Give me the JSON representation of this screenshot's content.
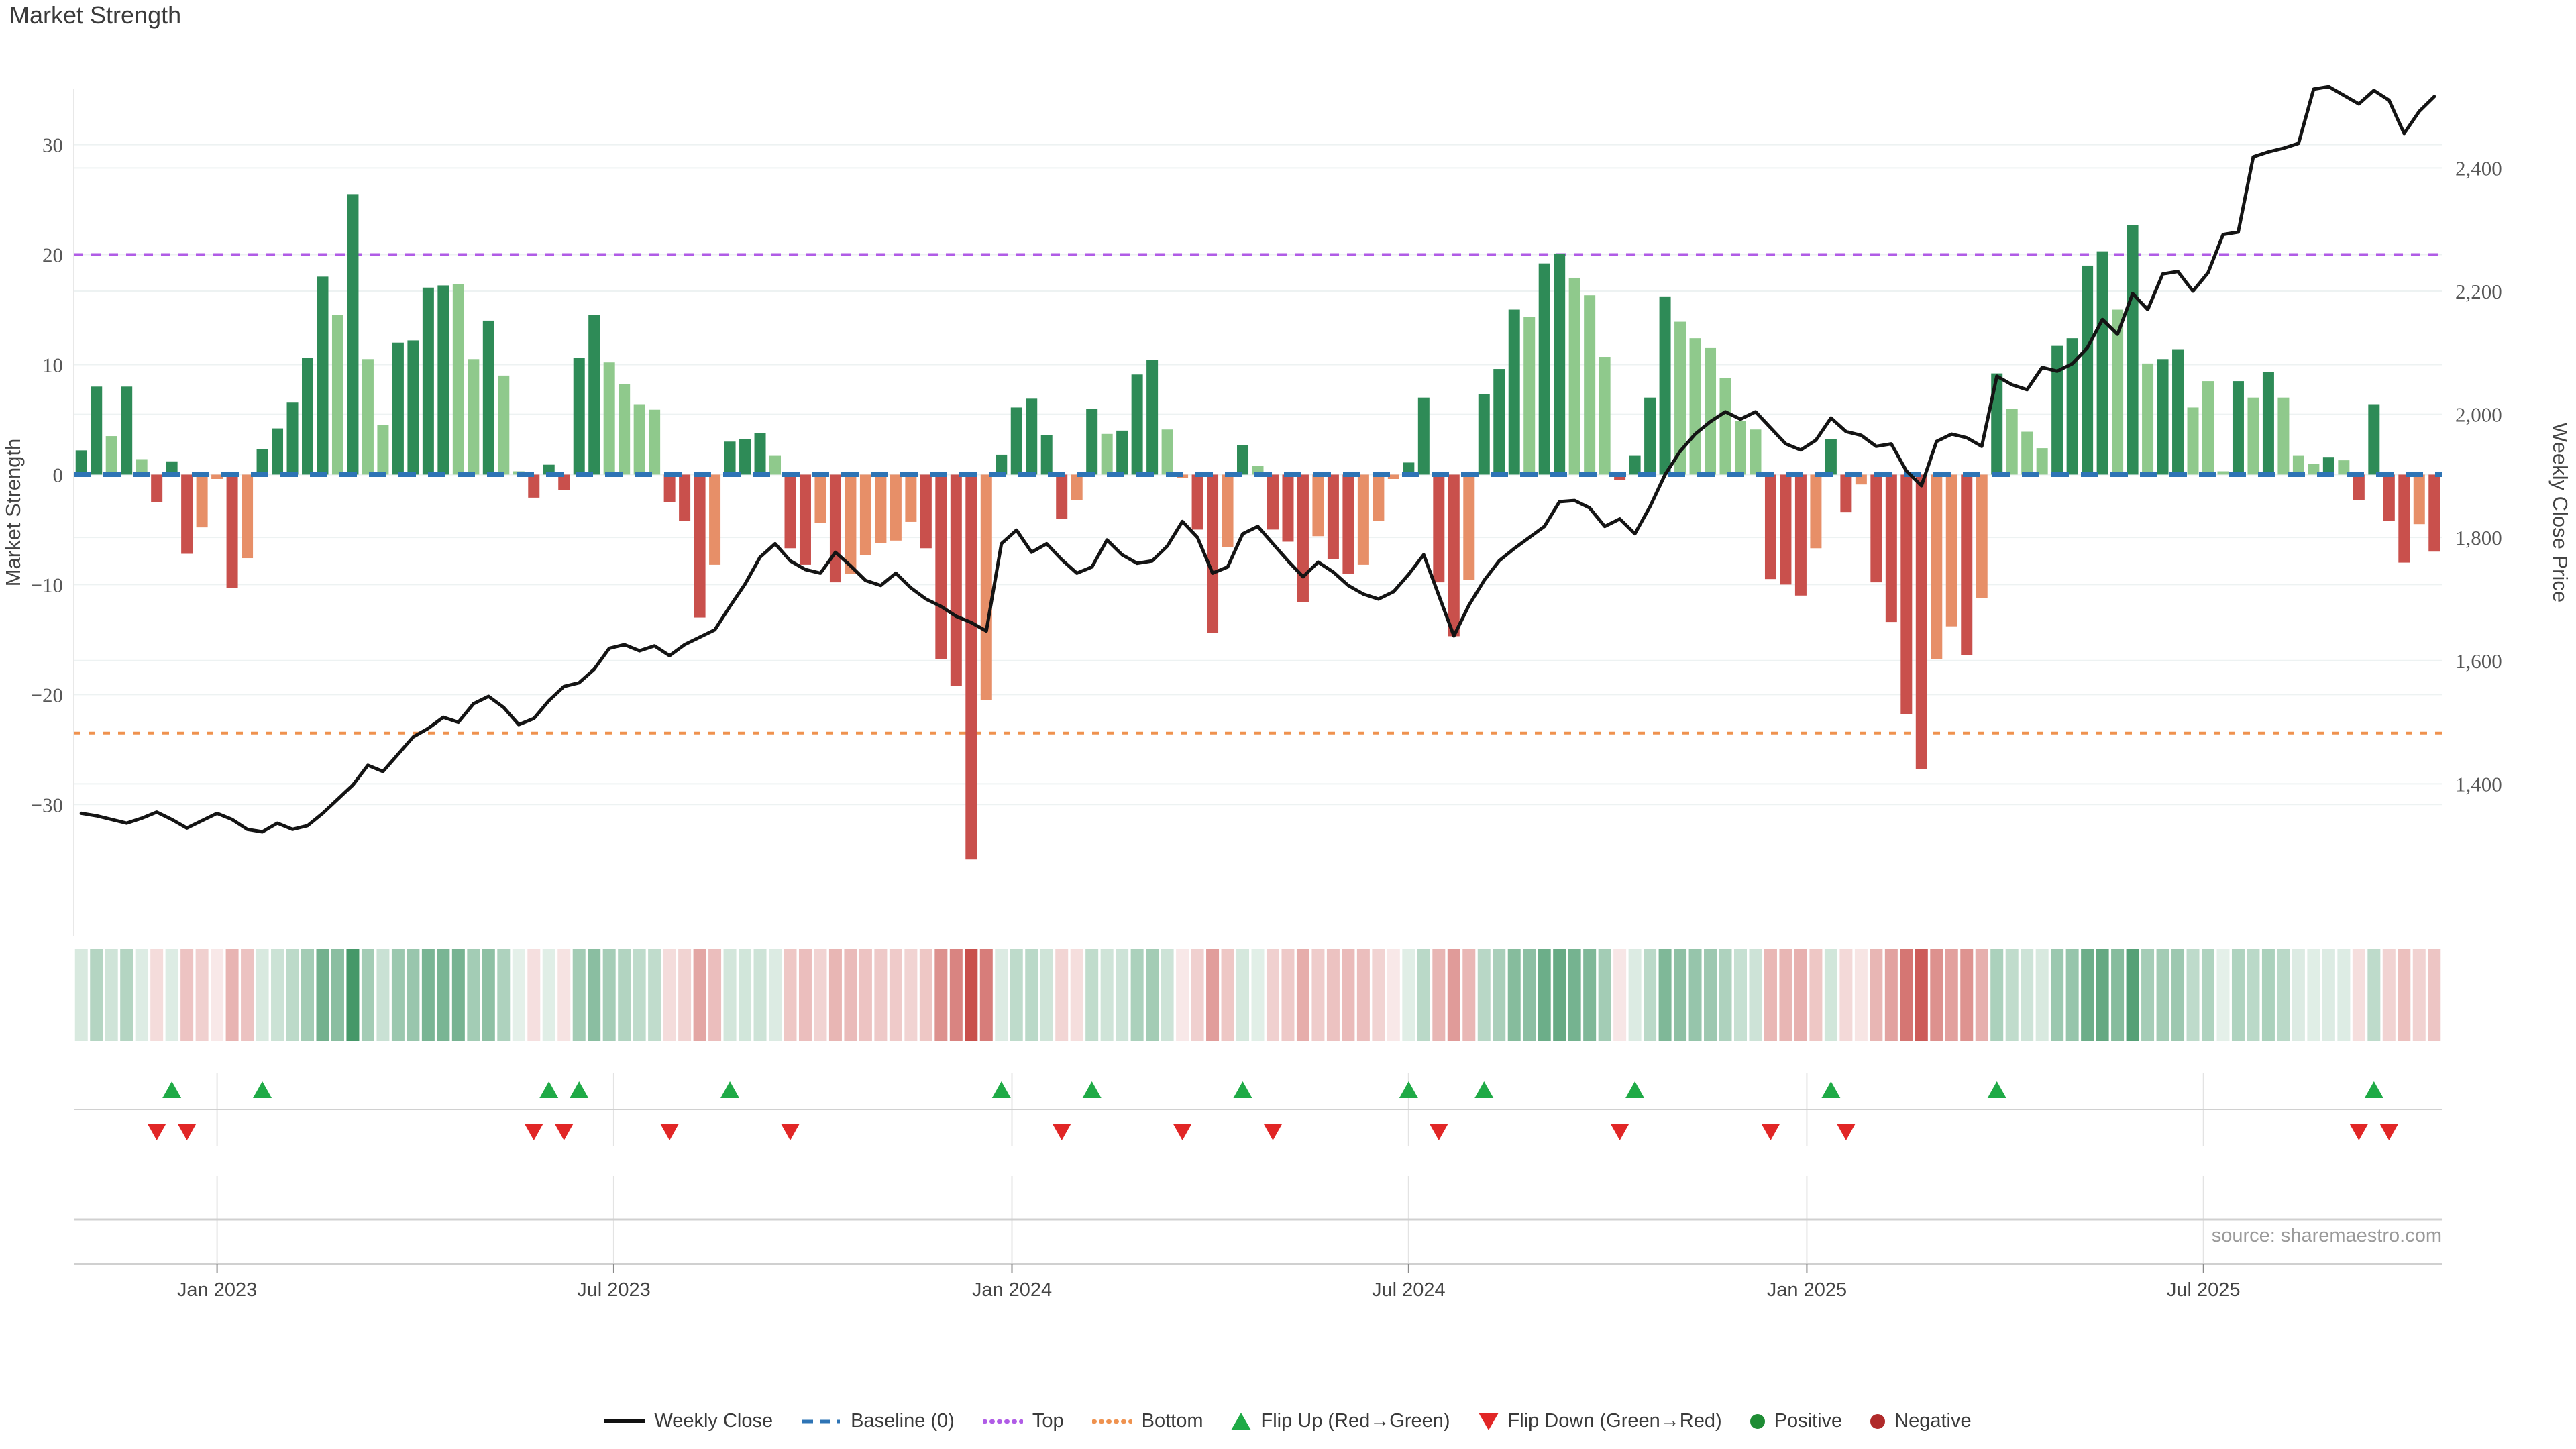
{
  "title": "Market Strength",
  "source": "source: sharemaestro.com",
  "axes": {
    "left_label": "Market Strength",
    "right_label": "Weekly Close Price",
    "strength_ticks": [
      {
        "label": "30",
        "value": 30
      },
      {
        "label": "20",
        "value": 20
      },
      {
        "label": "10",
        "value": 10
      },
      {
        "label": "0",
        "value": 0
      },
      {
        "label": "−10",
        "value": -10
      },
      {
        "label": "−20",
        "value": -20
      },
      {
        "label": "−30",
        "value": -30
      }
    ],
    "price_ticks": [
      {
        "label": "2,400",
        "value": 2400
      },
      {
        "label": "2,200",
        "value": 2200
      },
      {
        "label": "2,000",
        "value": 2000
      },
      {
        "label": "1,800",
        "value": 1800
      },
      {
        "label": "1,600",
        "value": 1600
      },
      {
        "label": "1,400",
        "value": 1400
      }
    ],
    "x_ticks": [
      {
        "label": "Jan 2023",
        "week": 9.0
      },
      {
        "label": "Jul 2023",
        "week": 35.3
      },
      {
        "label": "Jan 2024",
        "week": 61.7
      },
      {
        "label": "Jul 2024",
        "week": 88.0
      },
      {
        "label": "Jan 2025",
        "week": 114.4
      },
      {
        "label": "Jul 2025",
        "week": 140.7
      }
    ]
  },
  "colors": {
    "bar_dark_green": "#2e8b57",
    "bar_light_green": "#8fc98c",
    "bar_dark_red": "#c9504c",
    "bar_salmon": "#e78f68",
    "top_line": "#b05ce6",
    "bottom_line": "#ef924f",
    "baseline": "#2e74b5",
    "price_line": "#141414",
    "flip_up": "#1faa46",
    "flip_down": "#e12626",
    "positive_dot": "#1e8c34",
    "negative_dot": "#b02a2a",
    "grid": "#edf2f2",
    "band_line": "#d0d0d0",
    "vgrid": "#e3e3e3",
    "tick_text": "#565656",
    "axis_title_text": "#444444",
    "x_label_text": "#444444"
  },
  "legend": {
    "items": [
      {
        "label": "Weekly Close",
        "type": "line",
        "color": "#111111"
      },
      {
        "label": "Baseline (0)",
        "type": "dash",
        "color": "#2e74b5"
      },
      {
        "label": "Top",
        "type": "dots",
        "color": "#b05ce6"
      },
      {
        "label": "Bottom",
        "type": "dots",
        "color": "#ef924f"
      },
      {
        "label": "Flip Up (Red→Green)",
        "type": "triangle-up",
        "color": "#1faa46"
      },
      {
        "label": "Flip Down (Green→Red)",
        "type": "triangle-down",
        "color": "#e12626"
      },
      {
        "label": "Positive",
        "type": "circle",
        "color": "#1e8c34"
      },
      {
        "label": "Negative",
        "type": "circle",
        "color": "#b02a2a"
      }
    ]
  },
  "chart_data": {
    "type": "combo-bar-line-heatmap",
    "title": "Market Strength",
    "ylabel_left": "Market Strength",
    "ylabel_right": "Weekly Close Price",
    "x_range_weeks": 157,
    "ylim_strength": [
      -42,
      35.1
    ],
    "ylim_price": [
      1152,
      2529
    ],
    "levels": {
      "baseline": 0,
      "top": 20,
      "bottom": -23.5
    },
    "bars": {
      "values": [
        2.2,
        8,
        3.5,
        8,
        1.4,
        -2.5,
        1.2,
        -7.2,
        -4.8,
        -0.4,
        -10.3,
        -7.6,
        2.3,
        4.2,
        6.6,
        10.6,
        18,
        14.5,
        25.5,
        10.5,
        4.5,
        12,
        12.2,
        17,
        17.2,
        17.3,
        10.5,
        14,
        9,
        0.3,
        -2.1,
        0.9,
        -1.4,
        10.6,
        14.5,
        10.2,
        8.2,
        6.4,
        5.9,
        -2.5,
        -4.2,
        -13,
        -8.2,
        3,
        3.2,
        3.8,
        1.7,
        -6.7,
        -8.2,
        -4.4,
        -9.8,
        -9,
        -7.3,
        -6.2,
        -6,
        -4.3,
        -6.7,
        -16.8,
        -19.2,
        -35,
        -20.5,
        1.8,
        6.1,
        6.9,
        3.6,
        -4,
        -2.3,
        6,
        3.7,
        4,
        9.1,
        10.4,
        4.1,
        -0.3,
        -5,
        -14.4,
        -6.6,
        2.7,
        0.8,
        -5,
        -6.1,
        -11.6,
        -5.6,
        -7.7,
        -9,
        -8.2,
        -4.2,
        -0.4,
        1.1,
        7,
        -9.8,
        -14.7,
        -9.6,
        7.3,
        9.6,
        15,
        14.3,
        19.2,
        20.1,
        17.9,
        16.3,
        10.7,
        -0.5,
        1.7,
        7,
        16.2,
        13.9,
        12.4,
        11.5,
        8.8,
        4.9,
        4.1,
        -9.5,
        -10,
        -11,
        -6.7,
        3.2,
        -3.4,
        -0.9,
        -9.8,
        -13.4,
        -21.8,
        -26.8,
        -16.8,
        -13.8,
        -16.4,
        -11.2,
        9.2,
        6,
        3.9,
        2.4,
        11.7,
        12.4,
        19,
        20.3,
        15,
        22.7,
        10.1,
        10.5,
        11.4,
        6.1,
        8.5,
        0.3,
        8.5,
        7,
        9.3,
        7,
        1.7,
        1,
        1.6,
        1.3,
        -2.3,
        6.4,
        -4.2,
        -8,
        -4.5,
        -7
      ],
      "colors": [
        "dg",
        "dg",
        "lg",
        "dg",
        "lg",
        "dr",
        "dg",
        "dr",
        "lr",
        "lr",
        "dr",
        "lr",
        "dg",
        "dg",
        "dg",
        "dg",
        "dg",
        "lg",
        "dg",
        "lg",
        "lg",
        "dg",
        "dg",
        "dg",
        "dg",
        "lg",
        "lg",
        "dg",
        "lg",
        "lg",
        "dr",
        "dg",
        "dr",
        "dg",
        "dg",
        "lg",
        "lg",
        "lg",
        "lg",
        "dr",
        "dr",
        "dr",
        "lr",
        "dg",
        "dg",
        "dg",
        "lg",
        "dr",
        "dr",
        "lr",
        "dr",
        "lr",
        "lr",
        "lr",
        "lr",
        "lr",
        "dr",
        "dr",
        "dr",
        "dr",
        "lr",
        "dg",
        "dg",
        "dg",
        "dg",
        "dr",
        "lr",
        "dg",
        "lg",
        "dg",
        "dg",
        "dg",
        "lg",
        "lr",
        "dr",
        "dr",
        "lr",
        "dg",
        "lg",
        "dr",
        "dr",
        "dr",
        "lr",
        "dr",
        "dr",
        "lr",
        "lr",
        "lr",
        "dg",
        "dg",
        "dr",
        "dr",
        "lr",
        "dg",
        "dg",
        "dg",
        "lg",
        "dg",
        "dg",
        "lg",
        "lg",
        "lg",
        "dr",
        "dg",
        "dg",
        "dg",
        "lg",
        "lg",
        "lg",
        "lg",
        "lg",
        "lg",
        "dr",
        "dr",
        "dr",
        "lr",
        "dg",
        "dr",
        "lr",
        "dr",
        "dr",
        "dr",
        "dr",
        "lr",
        "lr",
        "dr",
        "lr",
        "dg",
        "lg",
        "lg",
        "lg",
        "dg",
        "dg",
        "dg",
        "dg",
        "lg",
        "dg",
        "lg",
        "dg",
        "dg",
        "lg",
        "lg",
        "lg",
        "dg",
        "lg",
        "dg",
        "lg",
        "lg",
        "lg",
        "dg",
        "lg",
        "dr",
        "dg",
        "dr",
        "dr",
        "lr",
        "dr"
      ]
    },
    "weekly_close": [
      1352,
      1348,
      1342,
      1336,
      1344,
      1354,
      1342,
      1328,
      1340,
      1352,
      1342,
      1326,
      1322,
      1336,
      1326,
      1332,
      1352,
      1375,
      1398,
      1430,
      1420,
      1448,
      1476,
      1490,
      1508,
      1500,
      1530,
      1542,
      1524,
      1496,
      1506,
      1535,
      1558,
      1564,
      1586,
      1620,
      1626,
      1616,
      1624,
      1608,
      1626,
      1638,
      1650,
      1688,
      1724,
      1768,
      1790,
      1762,
      1748,
      1742,
      1776,
      1754,
      1730,
      1722,
      1742,
      1718,
      1700,
      1688,
      1672,
      1662,
      1648,
      1790,
      1812,
      1776,
      1790,
      1764,
      1742,
      1752,
      1796,
      1772,
      1758,
      1762,
      1786,
      1826,
      1800,
      1742,
      1752,
      1806,
      1818,
      1790,
      1762,
      1736,
      1760,
      1744,
      1722,
      1708,
      1700,
      1712,
      1740,
      1772,
      1706,
      1640,
      1690,
      1730,
      1762,
      1782,
      1800,
      1818,
      1858,
      1860,
      1848,
      1818,
      1830,
      1806,
      1850,
      1902,
      1940,
      1968,
      1988,
      2004,
      1992,
      2004,
      1978,
      1952,
      1942,
      1958,
      1994,
      1972,
      1966,
      1948,
      1952,
      1908,
      1884,
      1956,
      1968,
      1962,
      1948,
      2062,
      2048,
      2040,
      2076,
      2070,
      2082,
      2108,
      2154,
      2130,
      2196,
      2170,
      2228,
      2232,
      2200,
      2230,
      2292,
      2296,
      2418,
      2426,
      2432,
      2440,
      2528,
      2532,
      2518,
      2504,
      2526,
      2510,
      2456,
      2492,
      2516
    ],
    "flip_up_weeks": [
      6,
      12,
      31,
      33,
      43,
      61,
      67,
      77,
      88,
      93,
      103,
      116,
      127,
      152
    ],
    "flip_down_weeks": [
      5,
      7,
      30,
      32,
      39,
      47,
      65,
      73,
      79,
      90,
      102,
      112,
      117,
      151,
      153
    ]
  }
}
